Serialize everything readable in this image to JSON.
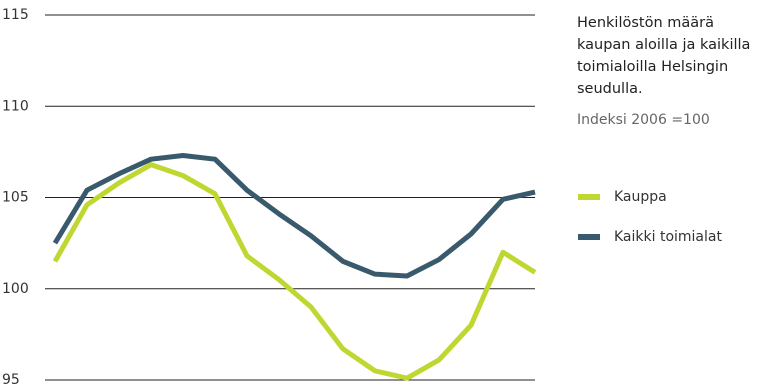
{
  "chart_data": {
    "type": "line",
    "title": "Henkilöstön määrä kaupan aloilla ja kaikilla toimialoilla Helsingin seudulla.",
    "subtitle": "Indeksi 2006 =100",
    "categories": [
      null,
      null,
      null,
      null,
      null,
      null,
      null,
      null,
      null,
      null,
      null,
      null,
      null,
      null,
      null,
      null
    ],
    "series": [
      {
        "name": "Kauppa",
        "color": "#bfd730",
        "values": [
          101.5,
          104.6,
          105.8,
          106.8,
          106.2,
          105.2,
          101.8,
          100.5,
          99.0,
          96.7,
          95.5,
          95.1,
          96.1,
          98.0,
          102.0,
          100.9
        ]
      },
      {
        "name": "Kaikki toimialat",
        "color": "#395a6c",
        "values": [
          102.5,
          105.4,
          106.3,
          107.1,
          107.3,
          107.1,
          105.4,
          104.1,
          102.9,
          101.5,
          100.8,
          100.7,
          101.6,
          103.0,
          104.9,
          105.3
        ]
      }
    ],
    "ylim": [
      95,
      115
    ],
    "yticks": [
      95,
      100,
      105,
      110,
      115
    ],
    "grid": true
  }
}
